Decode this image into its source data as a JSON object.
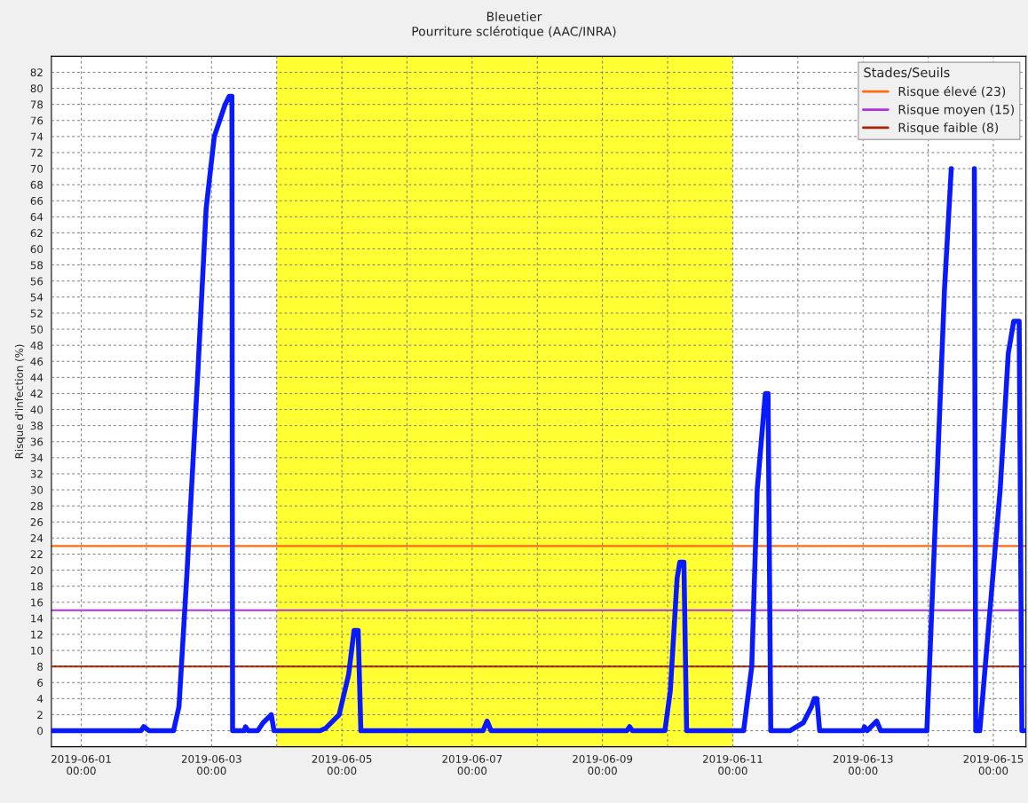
{
  "chart_data": {
    "type": "line",
    "title": "Bleuetier",
    "subtitle": "Pourriture sclérotique (AAC/INRA)",
    "ylabel": "Risque d'infection (%)",
    "legend_title": "Stades/Seuils",
    "legend": "top right",
    "grid": true,
    "marker": "none",
    "line_style": "solid",
    "xlim": [
      "2019-05-31T13:00",
      "2019-06-15T12:00"
    ],
    "xticks": [
      {
        "value": "2019-06-01",
        "label": "2019-06-01\n00:00"
      },
      {
        "value": "2019-06-02",
        "label": null
      },
      {
        "value": "2019-06-03",
        "label": "2019-06-03\n00:00"
      },
      {
        "value": "2019-06-04",
        "label": null
      },
      {
        "value": "2019-06-05",
        "label": "2019-06-05\n00:00"
      },
      {
        "value": "2019-06-06",
        "label": null
      },
      {
        "value": "2019-06-07",
        "label": "2019-06-07\n00:00"
      },
      {
        "value": "2019-06-08",
        "label": null
      },
      {
        "value": "2019-06-09",
        "label": "2019-06-09\n00:00"
      },
      {
        "value": "2019-06-10",
        "label": null
      },
      {
        "value": "2019-06-11",
        "label": "2019-06-11\n00:00"
      },
      {
        "value": "2019-06-12",
        "label": null
      },
      {
        "value": "2019-06-13",
        "label": "2019-06-13\n00:00"
      },
      {
        "value": "2019-06-14",
        "label": null
      },
      {
        "value": "2019-06-15",
        "label": "2019-06-15\n00:00"
      }
    ],
    "ylim": [
      -2,
      84
    ],
    "yticks": [
      0,
      2,
      4,
      6,
      8,
      10,
      12,
      14,
      16,
      18,
      20,
      22,
      24,
      26,
      28,
      30,
      32,
      34,
      36,
      38,
      40,
      42,
      44,
      46,
      48,
      50,
      52,
      54,
      56,
      58,
      60,
      62,
      64,
      66,
      68,
      70,
      72,
      74,
      76,
      78,
      80,
      82
    ],
    "bands": [
      {
        "axis": "x",
        "from": "2019-06-04",
        "to": "2019-06-11",
        "color": "#ffff33"
      }
    ],
    "ref_lines": [
      {
        "axis": "y",
        "value": 23,
        "label": "Risque élevé (23)",
        "color": "#ff6a13"
      },
      {
        "axis": "y",
        "value": 15,
        "label": "Risque moyen (15)",
        "color": "#b22ee8"
      },
      {
        "axis": "y",
        "value": 8,
        "label": "Risque faible (8)",
        "color": "#aa2200"
      }
    ],
    "series": [
      {
        "color": "#0a1aff",
        "x": [
          "2019-05-31T13:00",
          "2019-06-01T22:00",
          "2019-06-01T23:00",
          "2019-06-02T01:00",
          "2019-06-02T10:00",
          "2019-06-02T12:00",
          "2019-06-02T15:00",
          "2019-06-02T19:00",
          "2019-06-02T22:00",
          "2019-06-03T01:00",
          "2019-06-03T05:00",
          "2019-06-03T06:30",
          "2019-06-03T07:30",
          "2019-06-03T07:45",
          "2019-06-03T12:00",
          "2019-06-03T12:30",
          "2019-06-03T13:30",
          "2019-06-03T17:00",
          "2019-06-03T19:00",
          "2019-06-03T22:00",
          "2019-06-03T23:00",
          "2019-06-04T16:00",
          "2019-06-04T18:00",
          "2019-06-04T23:00",
          "2019-06-05T02:30",
          "2019-06-05T04:30",
          "2019-06-05T06:00",
          "2019-06-05T07:00",
          "2019-06-07T04:00",
          "2019-06-07T05:30",
          "2019-06-07T07:00",
          "2019-06-09T09:00",
          "2019-06-09T10:00",
          "2019-06-09T11:00",
          "2019-06-09T23:00",
          "2019-06-10T01:00",
          "2019-06-10T03:30",
          "2019-06-10T04:30",
          "2019-06-10T06:00",
          "2019-06-10T07:00",
          "2019-06-11T04:00",
          "2019-06-11T07:00",
          "2019-06-11T09:00",
          "2019-06-11T12:00",
          "2019-06-11T13:00",
          "2019-06-11T14:00",
          "2019-06-11T21:00",
          "2019-06-12T02:00",
          "2019-06-12T05:00",
          "2019-06-12T06:00",
          "2019-06-12T07:00",
          "2019-06-12T08:00",
          "2019-06-13T00:00",
          "2019-06-13T00:30",
          "2019-06-13T01:30",
          "2019-06-13T05:00",
          "2019-06-13T06:30",
          "2019-06-13T23:30",
          "2019-06-14T02:30",
          "2019-06-14T06:00",
          "2019-06-14T08:30",
          "2019-06-14T12:00",
          "2019-06-14T17:00",
          "2019-06-14T17:30",
          "2019-06-14T19:00",
          "2019-06-14T22:00",
          "2019-06-15T02:30",
          "2019-06-15T05:30",
          "2019-06-15T07:30",
          "2019-06-15T09:30",
          "2019-06-15T10:30",
          "2019-06-15T12:00"
        ],
        "values": [
          0,
          0,
          0.5,
          0,
          0,
          3,
          20,
          45,
          65,
          74,
          78,
          79,
          79,
          0,
          0,
          0.5,
          0,
          0,
          1,
          2,
          0,
          0,
          0.3,
          2,
          7,
          12.5,
          12.5,
          0,
          0,
          1.2,
          0,
          0,
          0.5,
          0,
          0,
          5,
          19,
          21,
          21,
          0,
          0,
          8,
          30,
          42,
          42,
          0,
          0,
          1,
          3,
          4,
          4,
          0,
          0,
          0.5,
          0,
          1.2,
          0,
          0,
          25,
          55,
          70,
          null,
          70,
          0,
          0,
          12,
          30,
          47,
          51,
          51,
          0,
          0
        ]
      }
    ]
  }
}
